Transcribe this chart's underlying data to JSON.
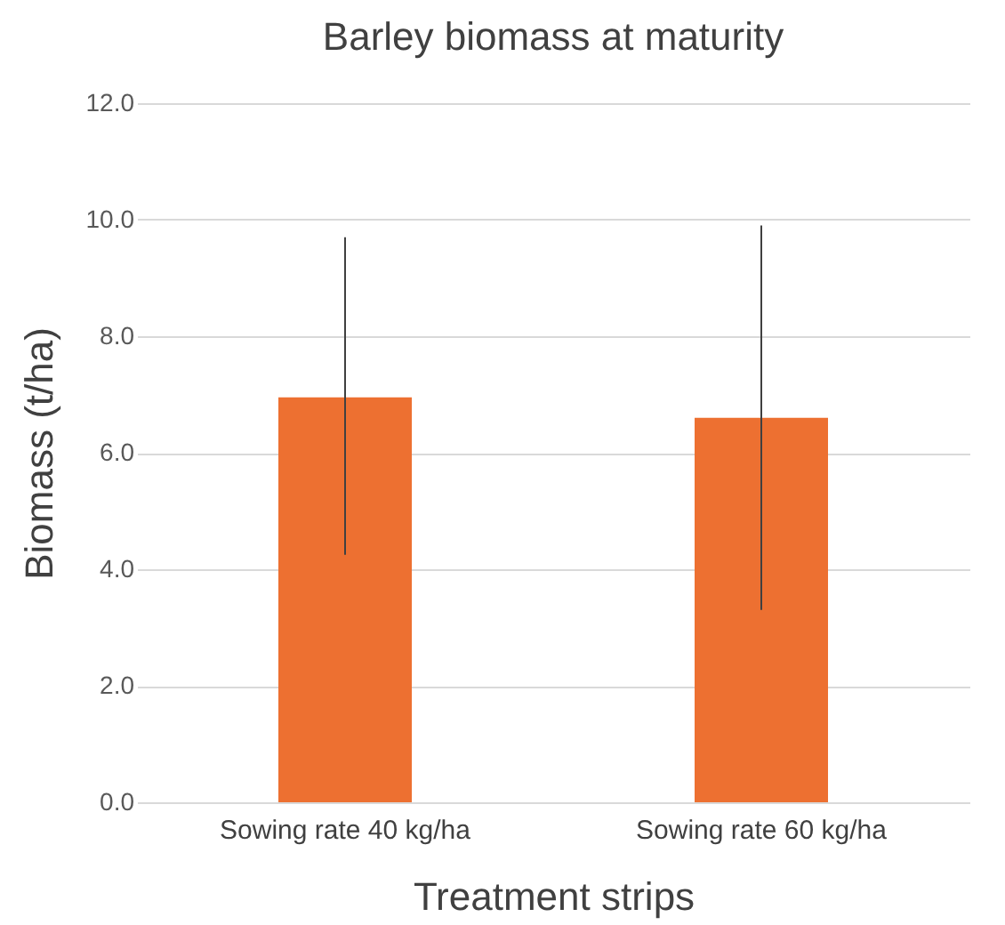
{
  "chart_data": {
    "type": "bar",
    "title": "Barley biomass at maturity",
    "xlabel": "Treatment strips",
    "ylabel": "Biomass (t/ha)",
    "categories": [
      "Sowing rate 40 kg/ha",
      "Sowing rate 60 kg/ha"
    ],
    "values": [
      6.95,
      6.6
    ],
    "color": "#ed7031",
    "errors": [
      [
        4.25,
        9.7
      ],
      [
        3.3,
        9.9
      ]
    ],
    "ylim": [
      0,
      12
    ],
    "yticks": [
      {
        "value": 0,
        "label": "0.0"
      },
      {
        "value": 2,
        "label": "2.0"
      },
      {
        "value": 4,
        "label": "4.0"
      },
      {
        "value": 6,
        "label": "6.0"
      },
      {
        "value": 8,
        "label": "8.0"
      },
      {
        "value": 10,
        "label": "10.0"
      },
      {
        "value": 12,
        "label": "12.0"
      }
    ],
    "grid": "y"
  }
}
